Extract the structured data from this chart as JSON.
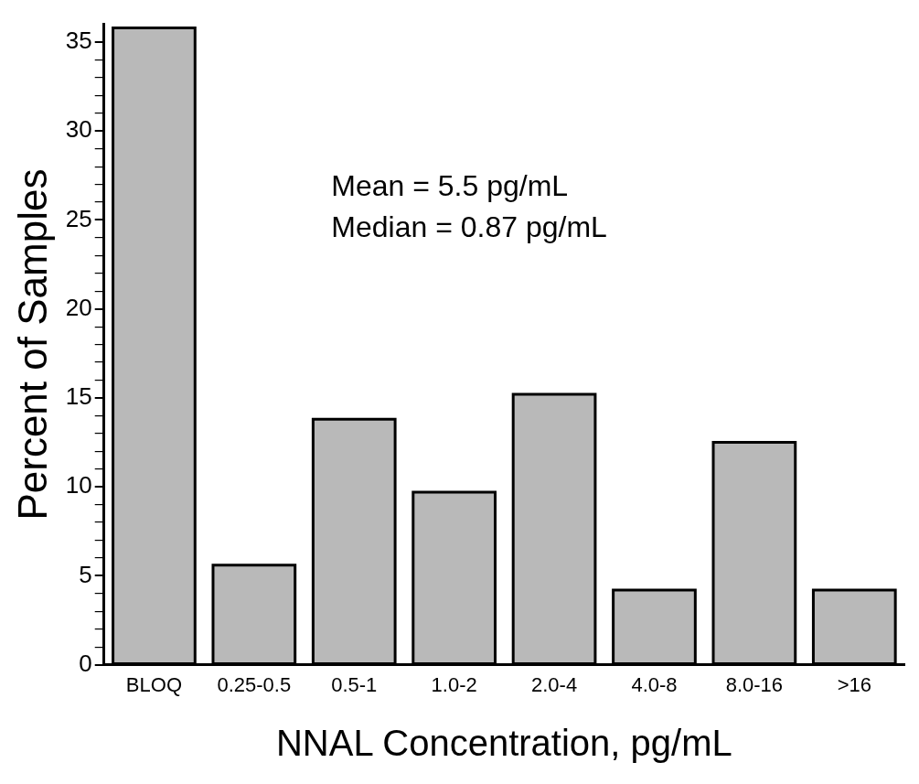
{
  "chart_data": {
    "type": "bar",
    "xlabel": "NNAL Concentration, pg/mL",
    "ylabel": "Percent of Samples",
    "categories": [
      "BLOQ",
      "0.25-0.5",
      "0.5-1",
      "1.0-2",
      "2.0-4",
      "4.0-8",
      "8.0-16",
      ">16"
    ],
    "values": [
      35.8,
      5.6,
      13.8,
      9.7,
      15.2,
      4.2,
      12.5,
      4.2
    ],
    "color": "#b9b9b9",
    "ylim": [
      0,
      36
    ],
    "yticks": [
      0,
      {
        "value": 1,
        "label": null
      },
      {
        "value": 2,
        "label": null
      },
      {
        "value": 3,
        "label": null
      },
      {
        "value": 4,
        "label": null
      },
      5,
      {
        "value": 6,
        "label": null
      },
      {
        "value": 7,
        "label": null
      },
      {
        "value": 8,
        "label": null
      },
      {
        "value": 9,
        "label": null
      },
      10,
      {
        "value": 11,
        "label": null
      },
      {
        "value": 12,
        "label": null
      },
      {
        "value": 13,
        "label": null
      },
      {
        "value": 14,
        "label": null
      },
      15,
      {
        "value": 16,
        "label": null
      },
      {
        "value": 17,
        "label": null
      },
      {
        "value": 18,
        "label": null
      },
      {
        "value": 19,
        "label": null
      },
      20,
      {
        "value": 21,
        "label": null
      },
      {
        "value": 22,
        "label": null
      },
      {
        "value": 23,
        "label": null
      },
      {
        "value": 24,
        "label": null
      },
      25,
      {
        "value": 26,
        "label": null
      },
      {
        "value": 27,
        "label": null
      },
      {
        "value": 28,
        "label": null
      },
      {
        "value": 29,
        "label": null
      },
      30,
      {
        "value": 31,
        "label": null
      },
      {
        "value": 32,
        "label": null
      },
      {
        "value": 33,
        "label": null
      },
      {
        "value": 34,
        "label": null
      },
      35
    ],
    "annotations": [
      "Mean = 5.5 pg/mL",
      "Median = 0.87 pg/mL"
    ],
    "grid": false,
    "legend": false
  }
}
